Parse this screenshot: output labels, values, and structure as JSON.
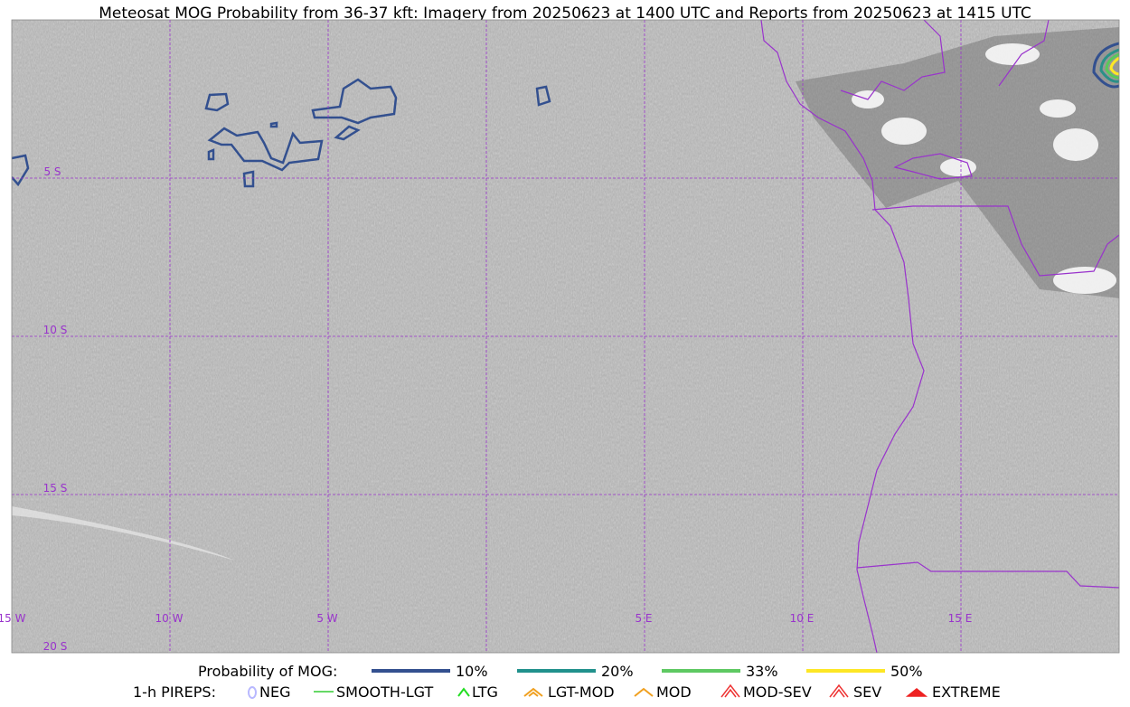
{
  "title": "Meteosat MOG Probability from 36-37 kft: Imagery from 20250623 at 1400 UTC and Reports from 20250623 at 1415 UTC",
  "map": {
    "lon_labels": [
      "15 W",
      "10 W",
      "5 W",
      "5 E",
      "10 E",
      "15 E"
    ],
    "lat_labels": [
      "5 S",
      "10 S",
      "15 S",
      "20 S"
    ]
  },
  "legend": {
    "probability": {
      "label": "Probability of MOG:",
      "items": [
        "10%",
        "20%",
        "33%",
        "50%"
      ]
    },
    "pireps": {
      "label": "1-h PIREPS:",
      "items": [
        "NEG",
        "SMOOTH-LGT",
        "LTG",
        "LGT-MOD",
        "MOD",
        "MOD-SEV",
        "SEV",
        "EXTREME"
      ]
    }
  }
}
